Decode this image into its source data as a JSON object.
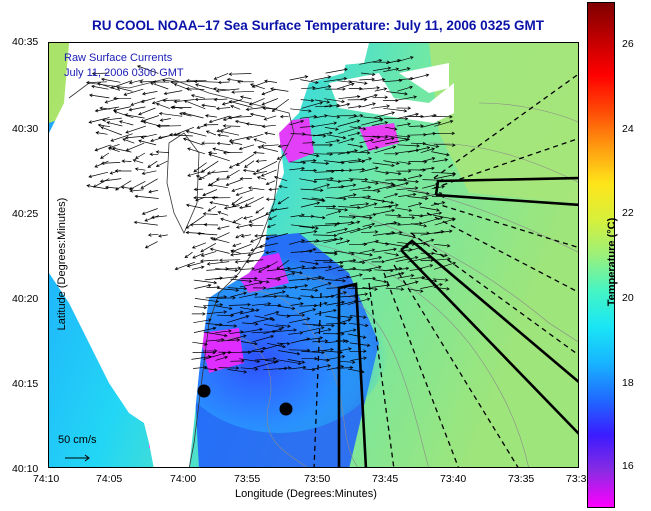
{
  "title": "RU COOL  NOAA–17  Sea Surface Temperature:  July 11, 2006 0325 GMT",
  "map": {
    "legend_lines": [
      "Raw Surface Currents",
      "July 11, 2006 0300 GMT"
    ],
    "scale_label": "50 cm/s",
    "xlabel": "Longitude (Degrees:Minutes)",
    "ylabel": "Latitude (Degrees:Minutes)",
    "xticks": [
      "74:10",
      "74:05",
      "74:00",
      "73:55",
      "73:50",
      "73:45",
      "73:40",
      "73:35",
      "73:3"
    ],
    "yticks": [
      "40:35",
      "40:30",
      "40:25",
      "40:20",
      "40:15",
      "40:10"
    ]
  },
  "colorbar": {
    "label": "Temperature (°C)",
    "ticks": [
      "26",
      "24",
      "22",
      "20",
      "18",
      "16"
    ],
    "colors": [
      "#ff00ff",
      "#8a2be2",
      "#3b1cff",
      "#1f6bff",
      "#18b4ff",
      "#19e6f5",
      "#45f5c4",
      "#9bf07a",
      "#d8f03a",
      "#ffe41a",
      "#ff9b10",
      "#ff4a06",
      "#ff0000",
      "#c00000",
      "#800000"
    ]
  }
}
